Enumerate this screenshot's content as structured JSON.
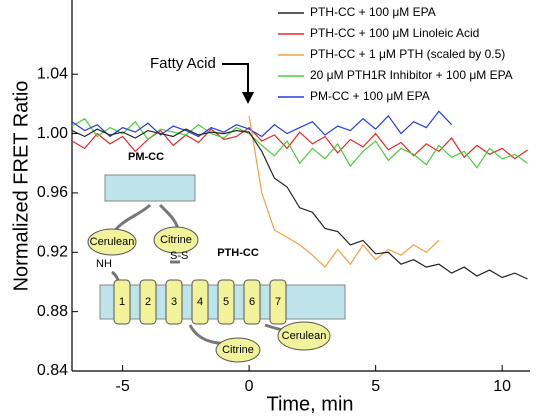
{
  "chart_data": {
    "type": "line",
    "x_label": "Time, min",
    "y_label": "Normalized FRET Ratio",
    "xlim": [
      -7,
      11.1
    ],
    "ylim": [
      0.84,
      1.09
    ],
    "xticks": [
      -5,
      0,
      5,
      10
    ],
    "yticks": [
      0.84,
      0.88,
      0.92,
      0.96,
      {
        "value": 1.0,
        "label": "1.00"
      },
      1.04
    ],
    "legend": "top-right",
    "x": [
      -7,
      -6.5,
      -6,
      -5.5,
      -5,
      -4.5,
      -4,
      -3.5,
      -3,
      -2.5,
      -2,
      -1.5,
      -1,
      -0.5,
      0,
      0.5,
      1,
      1.5,
      2,
      2.5,
      3,
      3.5,
      4,
      4.5,
      5,
      5.5,
      6,
      6.5,
      7,
      7.5,
      8,
      8.5,
      9,
      9.5,
      10,
      10.5,
      11
    ],
    "series": [
      {
        "name": "PTH-CC + 100 μM EPA",
        "color": "#222222",
        "values": [
          1.002,
          0.998,
          1.003,
          0.999,
          1.001,
          0.997,
          1.002,
          1.0,
          0.998,
          1.003,
          0.999,
          1.001,
          1.0,
          1.002,
          1.001,
          0.988,
          0.97,
          0.964,
          0.95,
          0.947,
          0.936,
          0.934,
          0.925,
          0.928,
          0.919,
          0.92,
          0.912,
          0.915,
          0.91,
          0.912,
          0.906,
          0.91,
          0.904,
          0.908,
          0.903,
          0.906,
          0.902
        ]
      },
      {
        "name": "PTH-CC + 100 μM Linoleic Acid",
        "color": "#e8282b",
        "values": [
          0.995,
          0.99,
          1.0,
          0.993,
          0.998,
          0.988,
          0.996,
          1.002,
          0.992,
          0.999,
          0.994,
          1.003,
          0.996,
          0.998,
          1.004,
          0.995,
          0.999,
          0.99,
          1.001,
          0.993,
          0.998,
          0.987,
          0.996,
          0.991,
          1.0,
          0.989,
          0.994,
          0.985,
          0.993,
          0.988,
          0.997,
          0.984,
          0.992,
          0.986,
          0.99,
          0.983,
          0.989
        ]
      },
      {
        "name": "PTH-CC + 1 μM PTH (scaled by 0.5)",
        "color": "#f5a040",
        "values": [
          null,
          null,
          null,
          null,
          null,
          null,
          null,
          null,
          null,
          null,
          null,
          null,
          null,
          null,
          1.012,
          0.96,
          0.935,
          0.93,
          0.925,
          0.918,
          0.91,
          0.922,
          0.912,
          0.925,
          0.915,
          0.922,
          0.918,
          0.925,
          0.92,
          0.928,
          null,
          null,
          null,
          null,
          null,
          null,
          null
        ]
      },
      {
        "name": "20 μM PTH1R Inhibitor + 100 μM EPA",
        "color": "#4ccd3a",
        "values": [
          1.005,
          1.01,
          0.998,
          1.004,
          1.0,
          1.008,
          0.996,
          1.003,
          1.001,
          0.999,
          1.006,
          1.0,
          0.997,
          1.004,
          1.0,
          0.992,
          0.985,
          0.995,
          0.98,
          0.99,
          0.983,
          0.993,
          0.978,
          0.988,
          0.995,
          0.982,
          0.99,
          0.986,
          0.979,
          0.992,
          0.984,
          0.988,
          0.977,
          0.99,
          0.983,
          0.986,
          0.98
        ]
      },
      {
        "name": "PM-CC + 100 μM EPA",
        "color": "#2a3ee0",
        "values": [
          1.008,
          1.002,
          1.006,
          0.998,
          1.004,
          1.001,
          1.007,
          0.999,
          1.005,
          1.002,
          0.998,
          1.004,
          1.001,
          1.006,
          1.003,
          0.998,
          1.006,
          1.0,
          1.004,
          1.008,
          0.999,
          1.005,
          1.002,
          1.01,
          1.003,
          1.012,
          1.0,
          1.008,
          1.004,
          1.015,
          1.006,
          null,
          null,
          null,
          null,
          null,
          null
        ]
      }
    ],
    "annotation": "Fatty Acid",
    "inset": {
      "pm_cc": "PM-CC",
      "pth_cc": "PTH-CC",
      "cerulean": "Cerulean",
      "citrine": "Citrine",
      "nh": "NH",
      "ss": "S-S",
      "helices": [
        "1",
        "2",
        "3",
        "4",
        "5",
        "6",
        "7"
      ]
    }
  }
}
